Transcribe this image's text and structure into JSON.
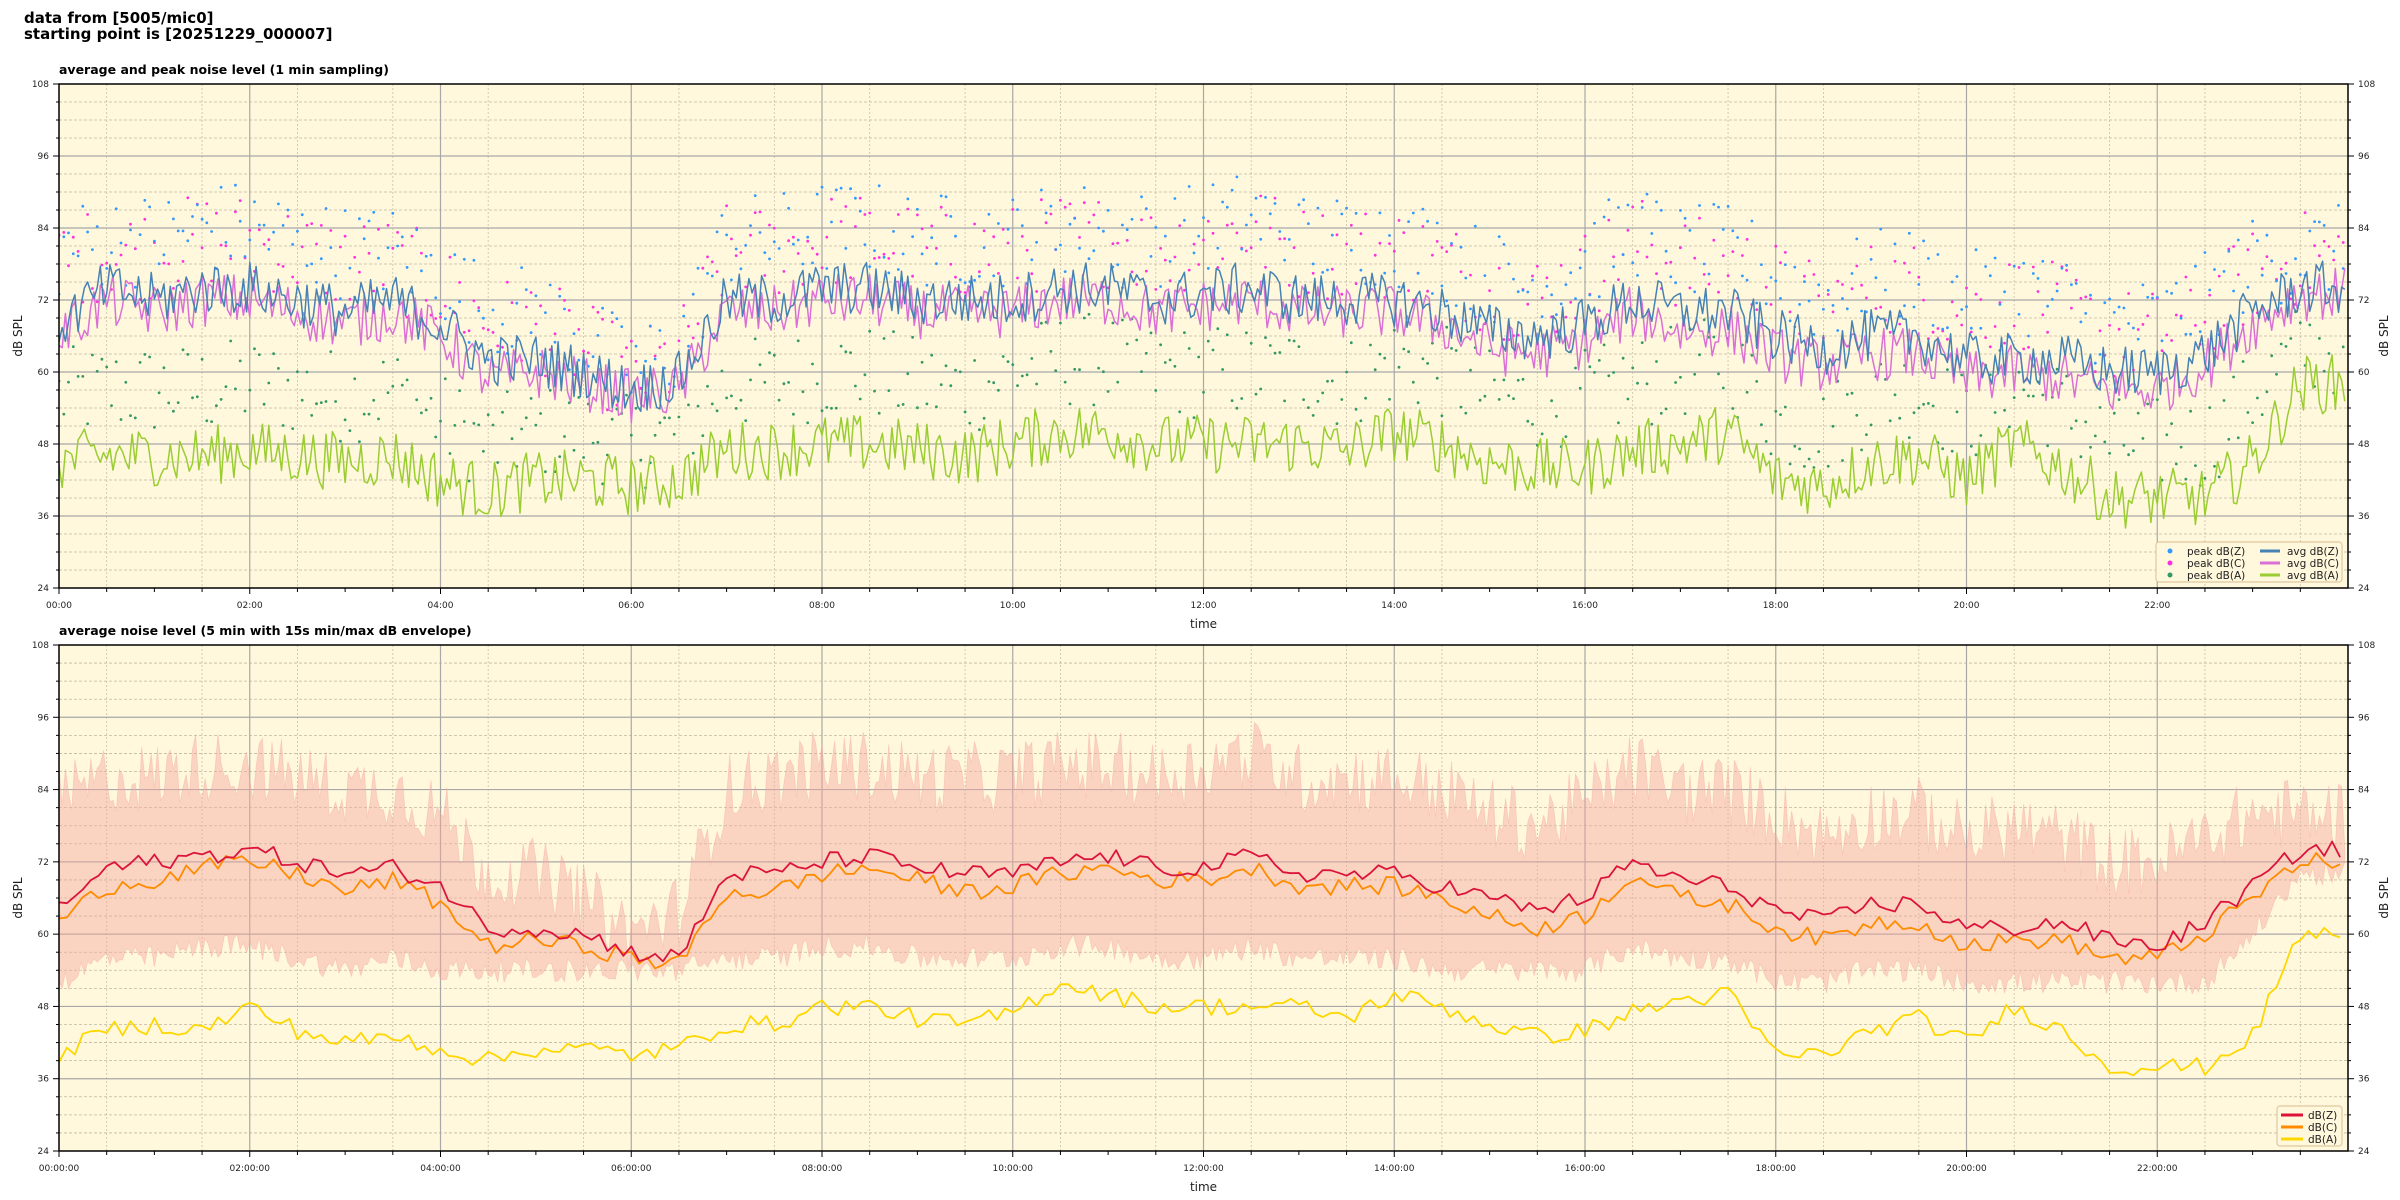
{
  "header": {
    "line1": "data from [5005/mic0]",
    "line2": "starting point is [20251229_000007]"
  },
  "colors": {
    "background": "#fff8dc",
    "peak_z": "#3399ff",
    "peak_c": "#ff33dd",
    "peak_a": "#339966",
    "avg_z": "#4682b4",
    "avg_c": "#da70d6",
    "avg_a": "#9acd32",
    "line_z": "#dc143c",
    "line_c": "#ff8c00",
    "line_a": "#ffd700",
    "envelope": "#f4a6a0"
  },
  "chart_data": [
    {
      "type": "scatter+line",
      "title": "average and peak noise level (1 min sampling)",
      "xlabel": "time",
      "ylabel": "dB SPL",
      "xlim_hours": [
        0,
        24
      ],
      "ylim": [
        24,
        108
      ],
      "yticks": [
        24,
        36,
        48,
        60,
        72,
        84,
        96,
        108
      ],
      "xtick_labels": [
        "00:00",
        "02:00",
        "04:00",
        "06:00",
        "08:00",
        "10:00",
        "12:00",
        "14:00",
        "16:00",
        "18:00",
        "20:00",
        "22:00"
      ],
      "grid": true,
      "legend_position": "bottom-right",
      "legend": [
        "peak dB(Z)",
        "peak dB(C)",
        "peak dB(A)",
        "avg dB(Z)",
        "avg dB(C)",
        "avg dB(A)"
      ],
      "x_step_hours": 0.5,
      "series": [
        {
          "name": "avg dB(Z)",
          "values": [
            68,
            74,
            72,
            74,
            74,
            72,
            70,
            72,
            68,
            62,
            62,
            60,
            57,
            59,
            72,
            72,
            74,
            74,
            72,
            72,
            72,
            74,
            74,
            72,
            73,
            74,
            72,
            72,
            72,
            70,
            67,
            66,
            68,
            72,
            70,
            70,
            66,
            64,
            66,
            66,
            62,
            62,
            62,
            60,
            60,
            63,
            70,
            74
          ]
        },
        {
          "name": "avg dB(C)",
          "values": [
            66,
            72,
            70,
            72,
            72,
            70,
            68,
            70,
            66,
            59,
            60,
            58,
            56,
            57,
            70,
            70,
            72,
            72,
            70,
            70,
            70,
            72,
            72,
            70,
            71,
            72,
            70,
            70,
            70,
            68,
            64,
            63,
            65,
            70,
            67,
            67,
            63,
            61,
            63,
            63,
            59,
            60,
            59,
            57,
            57,
            61,
            68,
            73
          ]
        },
        {
          "name": "avg dB(A)",
          "values": [
            45,
            46,
            46,
            46,
            47,
            46,
            45,
            46,
            42,
            40,
            42,
            42,
            41,
            42,
            47,
            47,
            48,
            48,
            47,
            46,
            48,
            50,
            50,
            48,
            48,
            48,
            48,
            47,
            50,
            48,
            45,
            44,
            44,
            47,
            48,
            50,
            42,
            41,
            45,
            46,
            42,
            48,
            44,
            39,
            39,
            39,
            45,
            58
          ]
        },
        {
          "name": "peak dB(Z)",
          "values": [
            80,
            82,
            82,
            84,
            84,
            82,
            80,
            80,
            76,
            70,
            70,
            66,
            60,
            64,
            82,
            82,
            84,
            84,
            82,
            82,
            82,
            84,
            84,
            82,
            84,
            86,
            82,
            82,
            82,
            80,
            76,
            74,
            78,
            84,
            80,
            80,
            76,
            72,
            76,
            76,
            72,
            74,
            72,
            68,
            68,
            72,
            78,
            80
          ]
        },
        {
          "name": "peak dB(C)",
          "values": [
            78,
            80,
            80,
            82,
            82,
            80,
            78,
            78,
            74,
            68,
            68,
            64,
            59,
            62,
            80,
            80,
            82,
            82,
            80,
            80,
            80,
            82,
            82,
            80,
            82,
            84,
            80,
            80,
            80,
            78,
            74,
            72,
            76,
            82,
            78,
            78,
            74,
            70,
            74,
            74,
            70,
            72,
            70,
            66,
            66,
            70,
            76,
            79
          ]
        },
        {
          "name": "peak dB(A)",
          "values": [
            56,
            57,
            57,
            57,
            58,
            57,
            56,
            57,
            52,
            48,
            50,
            50,
            48,
            50,
            58,
            58,
            60,
            60,
            58,
            57,
            60,
            62,
            62,
            60,
            60,
            60,
            60,
            58,
            62,
            60,
            56,
            55,
            56,
            58,
            60,
            62,
            52,
            50,
            56,
            57,
            52,
            58,
            54,
            48,
            48,
            48,
            56,
            64
          ]
        }
      ]
    },
    {
      "type": "line+area",
      "title": "average noise level (5 min with 15s min/max dB envelope)",
      "xlabel": "time",
      "ylabel": "dB SPL",
      "xlim_hours": [
        0,
        24
      ],
      "ylim": [
        24,
        108
      ],
      "yticks": [
        24,
        36,
        48,
        60,
        72,
        84,
        96,
        108
      ],
      "xtick_labels": [
        "00:00:00",
        "02:00:00",
        "04:00:00",
        "06:00:00",
        "08:00:00",
        "10:00:00",
        "12:00:00",
        "14:00:00",
        "16:00:00",
        "18:00:00",
        "20:00:00",
        "22:00:00"
      ],
      "grid": true,
      "legend_position": "bottom-right",
      "legend": [
        "dB(Z)",
        "dB(C)",
        "dB(A)"
      ],
      "x_step_hours": 0.5,
      "series": [
        {
          "name": "dB(Z)",
          "values": [
            64,
            71,
            72,
            73,
            74,
            72,
            70,
            71,
            68,
            61,
            61,
            60,
            57,
            56,
            70,
            70,
            72,
            73,
            71,
            70,
            70,
            72,
            73,
            71,
            71,
            73,
            70,
            70,
            70,
            68,
            66,
            64,
            66,
            72,
            69,
            68,
            64,
            62,
            65,
            65,
            61,
            61,
            62,
            59,
            58,
            62,
            68,
            74
          ]
        },
        {
          "name": "dB(C)",
          "values": [
            62,
            68,
            69,
            71,
            72,
            70,
            67,
            69,
            65,
            58,
            59,
            58,
            56,
            55,
            67,
            67,
            70,
            71,
            69,
            67,
            68,
            70,
            71,
            69,
            69,
            71,
            68,
            68,
            68,
            66,
            63,
            61,
            63,
            70,
            66,
            65,
            61,
            59,
            62,
            62,
            58,
            59,
            59,
            56,
            56,
            60,
            66,
            72
          ]
        },
        {
          "name": "dB(A)",
          "values": [
            40,
            44,
            45,
            44,
            48,
            44,
            42,
            43,
            41,
            39,
            41,
            41,
            40,
            41,
            45,
            45,
            48,
            48,
            46,
            45,
            47,
            52,
            50,
            48,
            48,
            48,
            48,
            46,
            50,
            48,
            45,
            43,
            44,
            47,
            49,
            50,
            40,
            40,
            44,
            46,
            42,
            48,
            44,
            38,
            38,
            38,
            43,
            60
          ]
        },
        {
          "name": "envelope max",
          "values": [
            82,
            86,
            86,
            88,
            88,
            86,
            84,
            84,
            80,
            70,
            70,
            66,
            60,
            64,
            84,
            86,
            88,
            88,
            86,
            86,
            86,
            88,
            88,
            86,
            88,
            90,
            86,
            86,
            86,
            84,
            80,
            78,
            82,
            88,
            84,
            84,
            80,
            76,
            80,
            80,
            76,
            78,
            76,
            72,
            72,
            76,
            80,
            80
          ]
        },
        {
          "name": "envelope min",
          "values": [
            52,
            56,
            56,
            58,
            58,
            56,
            54,
            56,
            54,
            54,
            54,
            54,
            54,
            54,
            56,
            56,
            58,
            58,
            56,
            56,
            56,
            58,
            58,
            56,
            56,
            58,
            56,
            56,
            56,
            54,
            54,
            54,
            54,
            58,
            56,
            56,
            52,
            52,
            54,
            54,
            52,
            52,
            52,
            52,
            52,
            52,
            60,
            70
          ]
        }
      ]
    }
  ]
}
